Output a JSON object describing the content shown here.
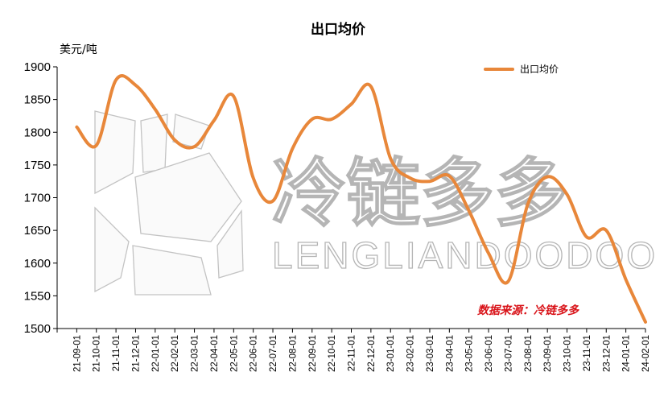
{
  "chart_data": {
    "type": "line",
    "title": "出口均价",
    "ylabel": "美元/吨",
    "xlabel": "",
    "ylim": [
      1500,
      1900
    ],
    "yticks": [
      1500,
      1550,
      1600,
      1650,
      1700,
      1750,
      1800,
      1850,
      1900
    ],
    "grid": false,
    "legend_position": "top-right",
    "line_color": "#e8873a",
    "categories": [
      "21-09-01",
      "21-10-01",
      "21-11-01",
      "21-12-01",
      "22-01-01",
      "22-02-01",
      "22-03-01",
      "22-04-01",
      "22-05-01",
      "22-06-01",
      "22-07-01",
      "22-08-01",
      "22-09-01",
      "22-10-01",
      "22-11-01",
      "22-12-01",
      "23-01-01",
      "23-02-01",
      "23-03-01",
      "23-04-01",
      "23-05-01",
      "23-06-01",
      "23-07-01",
      "23-08-01",
      "23-09-01",
      "23-10-01",
      "23-11-01",
      "23-12-01",
      "24-01-01",
      "24-02-01"
    ],
    "series": [
      {
        "name": "出口均价",
        "x": [
          0,
          1,
          2,
          3,
          4,
          5,
          6,
          7,
          8,
          9,
          10,
          11,
          12,
          13,
          14,
          15,
          16,
          17,
          18,
          19,
          20,
          21,
          22,
          23,
          24,
          25,
          26,
          27,
          28,
          29
        ],
        "values": [
          1808,
          1780,
          1880,
          1872,
          1835,
          1788,
          1778,
          1818,
          1855,
          1730,
          1695,
          1775,
          1820,
          1820,
          1843,
          1870,
          1760,
          1730,
          1725,
          1733,
          1680,
          1615,
          1572,
          1690,
          1732,
          1705,
          1640,
          1650,
          1575,
          1510
        ]
      }
    ],
    "source_note": "数据来源：冷链多多"
  },
  "watermark": {
    "cjk": "冷链多多",
    "latin": "LENGLIANDOODOO"
  }
}
